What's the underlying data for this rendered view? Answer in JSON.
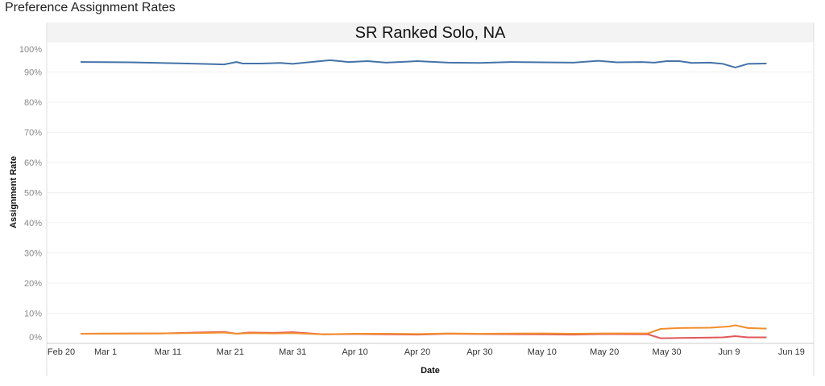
{
  "page_title": "Preference Assignment Rates",
  "chart_data": {
    "type": "line",
    "title": "SR Ranked Solo, NA",
    "xlabel": "Date",
    "ylabel": "Assignment Rate",
    "ylim": [
      0,
      100
    ],
    "y_ticks": [
      "0%",
      "10%",
      "20%",
      "30%",
      "40%",
      "50%",
      "60%",
      "70%",
      "80%",
      "90%",
      "100%"
    ],
    "x_ticks": [
      "Feb 20",
      "Mar 1",
      "Mar 11",
      "Mar 21",
      "Mar 31",
      "Apr 10",
      "Apr 20",
      "Apr 30",
      "May 10",
      "May 20",
      "May 30",
      "Jun 9",
      "Jun 19"
    ],
    "grid": true,
    "legend": "none",
    "series": [
      {
        "color": "#4472a8",
        "points": [
          [
            "Feb 26",
            93.3
          ],
          [
            "Mar 5",
            93.2
          ],
          [
            "Mar 12",
            92.9
          ],
          [
            "Mar 20",
            92.5
          ],
          [
            "Mar 22",
            93.3
          ],
          [
            "Mar 23",
            92.8
          ],
          [
            "Mar 26",
            92.8
          ],
          [
            "Mar 29",
            93.0
          ],
          [
            "Mar 31",
            92.7
          ],
          [
            "Apr 3",
            93.3
          ],
          [
            "Apr 6",
            93.9
          ],
          [
            "Apr 9",
            93.3
          ],
          [
            "Apr 12",
            93.6
          ],
          [
            "Apr 15",
            93.1
          ],
          [
            "Apr 20",
            93.6
          ],
          [
            "Apr 25",
            93.1
          ],
          [
            "Apr 30",
            93.0
          ],
          [
            "May 5",
            93.3
          ],
          [
            "May 10",
            93.2
          ],
          [
            "May 15",
            93.1
          ],
          [
            "May 19",
            93.7
          ],
          [
            "May 22",
            93.2
          ],
          [
            "May 26",
            93.3
          ],
          [
            "May 28",
            93.1
          ],
          [
            "May 30",
            93.6
          ],
          [
            "Jun 1",
            93.6
          ],
          [
            "Jun 3",
            93.0
          ],
          [
            "Jun 6",
            93.1
          ],
          [
            "Jun 8",
            92.7
          ],
          [
            "Jun 10",
            91.5
          ],
          [
            "Jun 12",
            92.7
          ],
          [
            "Jun 15",
            92.8
          ]
        ]
      },
      {
        "color": "#e15759",
        "points": [
          [
            "Feb 26",
            3.2
          ],
          [
            "Mar 10",
            3.3
          ],
          [
            "Mar 18",
            3.7
          ],
          [
            "Mar 20",
            3.8
          ],
          [
            "Mar 22",
            3.2
          ],
          [
            "Mar 24",
            3.6
          ],
          [
            "Mar 28",
            3.5
          ],
          [
            "Mar 31",
            3.7
          ],
          [
            "Apr 5",
            3.0
          ],
          [
            "Apr 10",
            3.1
          ],
          [
            "Apr 15",
            3.0
          ],
          [
            "Apr 20",
            2.9
          ],
          [
            "Apr 25",
            3.2
          ],
          [
            "Apr 30",
            3.1
          ],
          [
            "May 10",
            3.0
          ],
          [
            "May 15",
            2.9
          ],
          [
            "May 20",
            3.1
          ],
          [
            "May 27",
            3.0
          ],
          [
            "May 29",
            1.7
          ],
          [
            "Jun 1",
            1.8
          ],
          [
            "Jun 5",
            1.9
          ],
          [
            "Jun 8",
            2.0
          ],
          [
            "Jun 10",
            2.4
          ],
          [
            "Jun 12",
            2.0
          ],
          [
            "Jun 15",
            2.0
          ]
        ]
      },
      {
        "color": "#f28e2b",
        "points": [
          [
            "Feb 26",
            3.2
          ],
          [
            "Mar 10",
            3.3
          ],
          [
            "Mar 18",
            3.5
          ],
          [
            "Mar 20",
            3.6
          ],
          [
            "Mar 22",
            3.2
          ],
          [
            "Mar 24",
            3.4
          ],
          [
            "Mar 28",
            3.3
          ],
          [
            "Mar 31",
            3.4
          ],
          [
            "Apr 5",
            3.0
          ],
          [
            "Apr 10",
            3.2
          ],
          [
            "Apr 15",
            3.2
          ],
          [
            "Apr 20",
            3.1
          ],
          [
            "Apr 25",
            3.3
          ],
          [
            "Apr 30",
            3.2
          ],
          [
            "May 10",
            3.3
          ],
          [
            "May 15",
            3.2
          ],
          [
            "May 20",
            3.3
          ],
          [
            "May 27",
            3.3
          ],
          [
            "May 29",
            4.8
          ],
          [
            "Jun 1",
            5.1
          ],
          [
            "Jun 6",
            5.2
          ],
          [
            "Jun 9",
            5.6
          ],
          [
            "Jun 10",
            6.0
          ],
          [
            "Jun 12",
            5.1
          ],
          [
            "Jun 15",
            4.9
          ]
        ]
      }
    ]
  }
}
